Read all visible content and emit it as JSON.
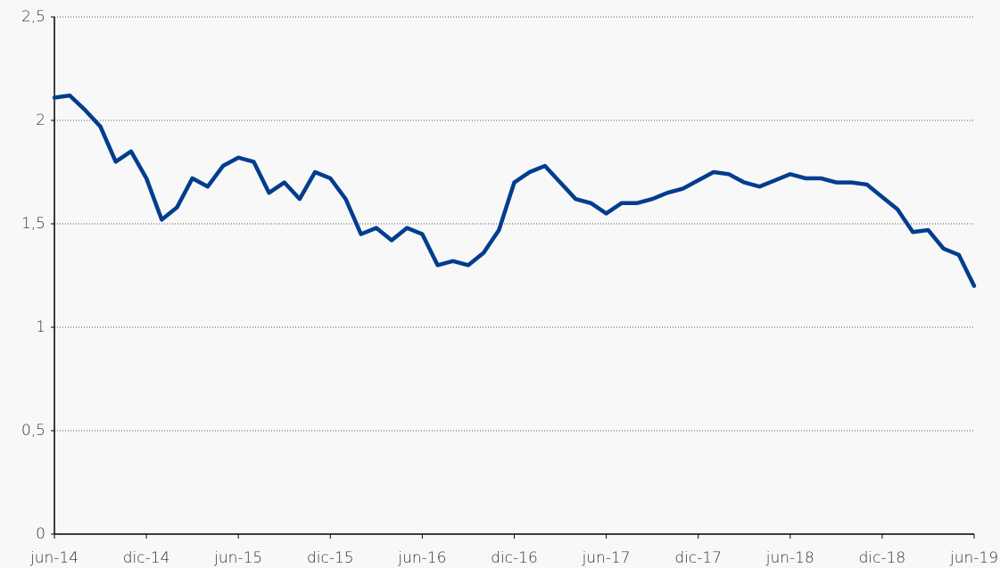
{
  "chart_data": {
    "type": "line",
    "categories": [
      "jun-14",
      null,
      null,
      null,
      null,
      null,
      "dic-14",
      null,
      null,
      null,
      null,
      null,
      "jun-15",
      null,
      null,
      null,
      null,
      null,
      "dic-15",
      null,
      null,
      null,
      null,
      null,
      "jun-16",
      null,
      null,
      null,
      null,
      null,
      "dic-16",
      null,
      null,
      null,
      null,
      null,
      "jun-17",
      null,
      null,
      null,
      null,
      null,
      "dic-17",
      null,
      null,
      null,
      null,
      null,
      "jun-18",
      null,
      null,
      null,
      null,
      null,
      "dic-18",
      null,
      null,
      null,
      null,
      null,
      "jun-19"
    ],
    "series": [
      {
        "color": "#003d8f",
        "values": [
          2.11,
          2.12,
          2.05,
          1.97,
          1.8,
          1.85,
          1.72,
          1.52,
          1.58,
          1.72,
          1.68,
          1.78,
          1.82,
          1.8,
          1.65,
          1.7,
          1.62,
          1.75,
          1.72,
          1.62,
          1.45,
          1.48,
          1.42,
          1.48,
          1.45,
          1.3,
          1.32,
          1.3,
          1.36,
          1.47,
          1.7,
          1.75,
          1.78,
          1.7,
          1.62,
          1.6,
          1.55,
          1.6,
          1.6,
          1.62,
          1.65,
          1.67,
          1.71,
          1.75,
          1.74,
          1.7,
          1.68,
          1.71,
          1.74,
          1.72,
          1.72,
          1.7,
          1.7,
          1.69,
          1.63,
          1.57,
          1.46,
          1.47,
          1.38,
          1.35,
          1.2
        ]
      }
    ],
    "ylim": [
      0,
      2.5
    ],
    "yticks": [
      0,
      {
        "value": 0.5,
        "label": "0,5"
      },
      1,
      {
        "value": 1.5,
        "label": "1,5"
      },
      2,
      {
        "value": 2.5,
        "label": "2,5"
      }
    ],
    "grid": true
  }
}
